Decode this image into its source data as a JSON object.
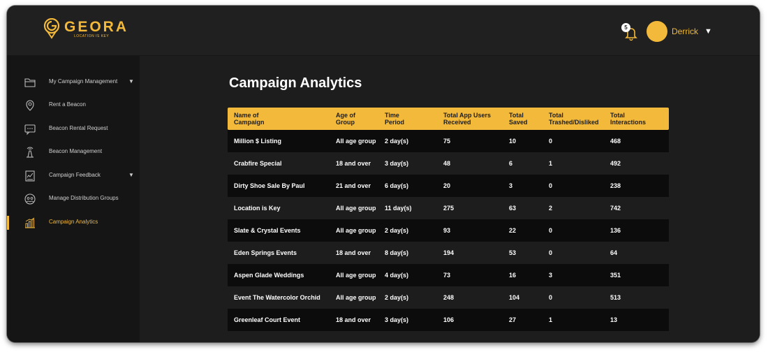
{
  "header": {
    "logo_name": "GEORA",
    "logo_tagline": "LOCATION IS KEY",
    "notification_count": "5",
    "user_name": "Derrick",
    "user_caret": "▼"
  },
  "sidebar": {
    "items": [
      {
        "label": "My Campaign Management",
        "icon": "folder-icon",
        "caret": "▼"
      },
      {
        "label": "Rent a Beacon",
        "icon": "location-pin-icon"
      },
      {
        "label": "Beacon Rental Request",
        "icon": "chat-bubble-icon"
      },
      {
        "label": "Beacon Management",
        "icon": "beacon-icon"
      },
      {
        "label": "Campaign Feedback",
        "icon": "feedback-icon",
        "caret": "▼"
      },
      {
        "label": "Manage Distribution Groups",
        "icon": "group-icon"
      },
      {
        "label": "Campaign Analytics",
        "icon": "analytics-icon",
        "active": true
      }
    ]
  },
  "main": {
    "title": "Campaign Analytics",
    "table": {
      "columns": [
        "Name of\nCampaign",
        "Age of\nGroup",
        "Time\nPeriod",
        "Total App Users\nReceived",
        "Total\nSaved",
        "Total\nTrashed/Disliked",
        "Total\nInteractions"
      ],
      "rows": [
        [
          "Million $ Listing",
          "All age group",
          "2 day(s)",
          "75",
          "10",
          "0",
          "468"
        ],
        [
          "Crabfire Special",
          "18 and over",
          "3 day(s)",
          "48",
          "6",
          "1",
          "492"
        ],
        [
          "Dirty Shoe Sale By Paul",
          "21 and over",
          "6 day(s)",
          "20",
          "3",
          "0",
          "238"
        ],
        [
          "Location is Key",
          "All age group",
          "11 day(s)",
          "275",
          "63",
          "2",
          "742"
        ],
        [
          "Slate & Crystal Events",
          "All age group",
          "2 day(s)",
          "93",
          "22",
          "0",
          "136"
        ],
        [
          "Eden Springs Events",
          "18 and over",
          "8 day(s)",
          "194",
          "53",
          "0",
          "64"
        ],
        [
          "Aspen Glade Weddings",
          "All age group",
          "4 day(s)",
          "73",
          "16",
          "3",
          "351"
        ],
        [
          "Event The Watercolor Orchid",
          "All age group",
          "2 day(s)",
          "248",
          "104",
          "0",
          "513"
        ],
        [
          "Greenleaf Court Event",
          "18 and over",
          "3 day(s)",
          "106",
          "27",
          "1",
          "13"
        ]
      ]
    }
  },
  "colors": {
    "accent": "#f2b93b",
    "background": "#1d1d1d",
    "sidebar": "#151515",
    "row_alt": "#0c0c0c"
  }
}
